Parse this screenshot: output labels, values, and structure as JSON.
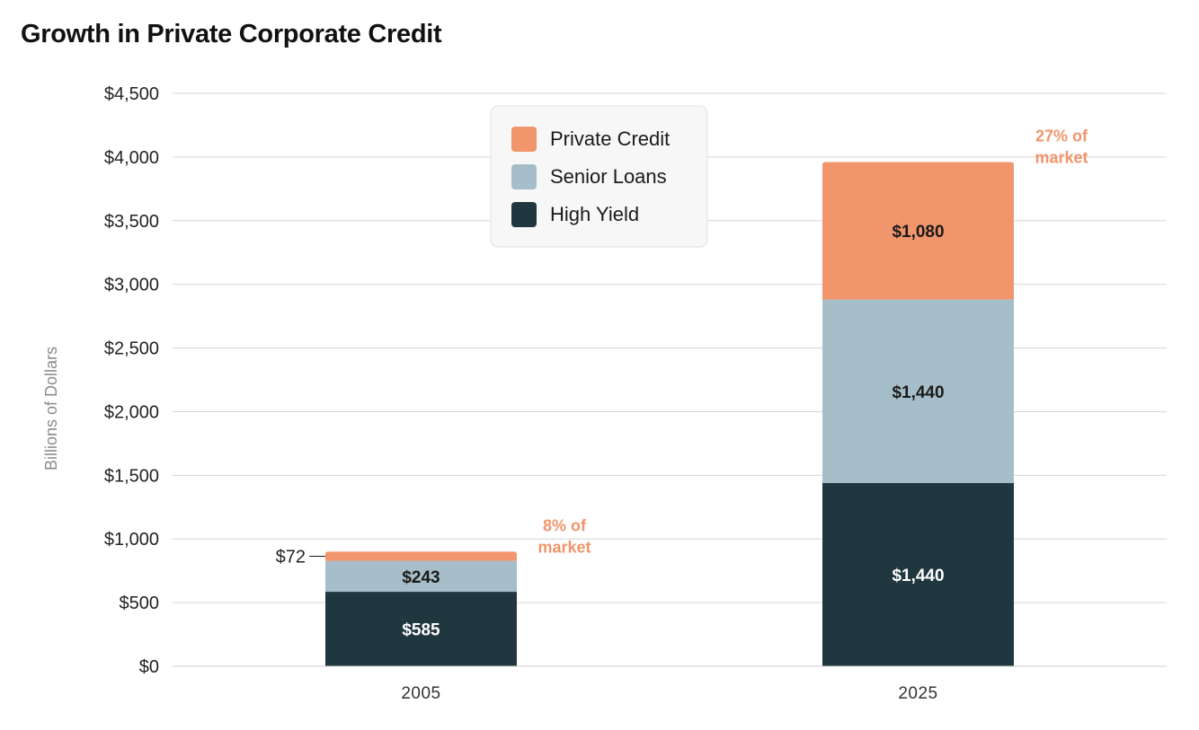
{
  "chart_data": {
    "type": "bar",
    "stacked": true,
    "title": "Growth in Private Corporate Credit",
    "ylabel": "Billions of Dollars",
    "xlabel": "",
    "categories": [
      "2005",
      "2025"
    ],
    "ylim": [
      0,
      4500
    ],
    "yticks": [
      0,
      500,
      1000,
      1500,
      2000,
      2500,
      3000,
      3500,
      4000,
      4500
    ],
    "ytick_labels": [
      "$0",
      "$500",
      "$1,000",
      "$1,500",
      "$2,000",
      "$2,500",
      "$3,000",
      "$3,500",
      "$4,000",
      "$4,500"
    ],
    "grid": true,
    "legend_position": "top-center",
    "series": [
      {
        "name": "High Yield",
        "values": [
          585,
          1440
        ],
        "labels": [
          "$585",
          "$1,440"
        ],
        "color": "#213740",
        "label_color": "#ffffff"
      },
      {
        "name": "Senior Loans",
        "values": [
          243,
          1440
        ],
        "labels": [
          "$243",
          "$1,440"
        ],
        "color": "#a6bec9",
        "label_color": "#1a1a1a"
      },
      {
        "name": "Private Credit",
        "values": [
          72,
          1080
        ],
        "labels": [
          "$72",
          "$1,080"
        ],
        "color": "#f0956c",
        "label_color": "#1a1a1a"
      }
    ],
    "legend_order": [
      "Private Credit",
      "Senior Loans",
      "High Yield"
    ],
    "annotations": [
      {
        "category": "2005",
        "line1": "8% of",
        "line2": "market"
      },
      {
        "category": "2025",
        "line1": "27% of",
        "line2": "market"
      }
    ]
  }
}
